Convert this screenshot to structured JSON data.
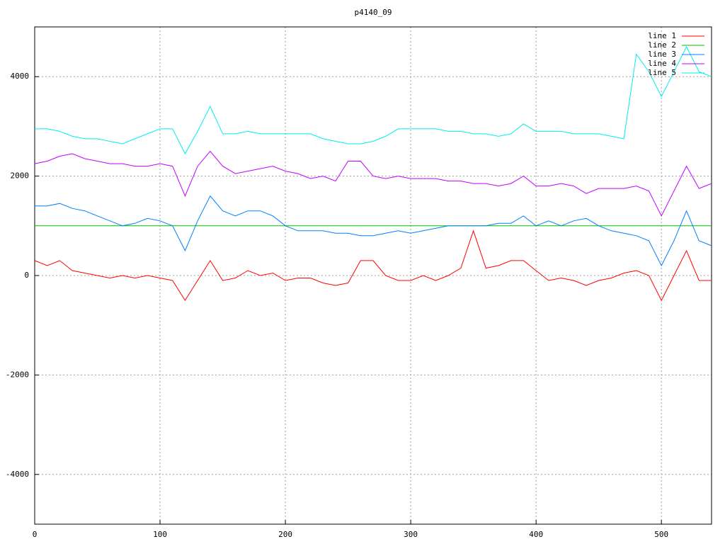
{
  "chart_data": {
    "type": "line",
    "title": "p4140_09",
    "x": [
      0,
      10,
      20,
      30,
      40,
      50,
      60,
      70,
      80,
      90,
      100,
      110,
      120,
      130,
      140,
      150,
      160,
      170,
      180,
      190,
      200,
      210,
      220,
      230,
      240,
      250,
      260,
      270,
      280,
      290,
      300,
      310,
      320,
      330,
      340,
      350,
      360,
      370,
      380,
      390,
      400,
      410,
      420,
      430,
      440,
      450,
      460,
      470,
      480,
      490,
      500,
      510,
      520,
      530,
      540
    ],
    "series": [
      {
        "name": "line 1",
        "color": "#ff0000",
        "values": [
          300,
          200,
          300,
          100,
          50,
          0,
          -50,
          0,
          -50,
          0,
          -50,
          -100,
          -500,
          -100,
          300,
          -100,
          -50,
          100,
          0,
          50,
          -100,
          -50,
          -50,
          -150,
          -200,
          -150,
          300,
          300,
          0,
          -100,
          -100,
          0,
          -100,
          0,
          150,
          900,
          150,
          200,
          300,
          300,
          100,
          -100,
          -50,
          -100,
          -200,
          -100,
          -50,
          50,
          100,
          0,
          -500,
          0,
          500,
          -100,
          -100
        ]
      },
      {
        "name": "line 2",
        "color": "#00c000",
        "values": [
          1000,
          1000,
          1000,
          1000,
          1000,
          1000,
          1000,
          1000,
          1000,
          1000,
          1000,
          1000,
          1000,
          1000,
          1000,
          1000,
          1000,
          1000,
          1000,
          1000,
          1000,
          1000,
          1000,
          1000,
          1000,
          1000,
          1000,
          1000,
          1000,
          1000,
          1000,
          1000,
          1000,
          1000,
          1000,
          1000,
          1000,
          1000,
          1000,
          1000,
          1000,
          1000,
          1000,
          1000,
          1000,
          1000,
          1000,
          1000,
          1000,
          1000,
          1000,
          1000,
          1000,
          1000,
          1000
        ]
      },
      {
        "name": "line 3",
        "color": "#0080ff",
        "values": [
          1400,
          1400,
          1450,
          1350,
          1300,
          1200,
          1100,
          1000,
          1050,
          1150,
          1100,
          1000,
          500,
          1100,
          1600,
          1300,
          1200,
          1300,
          1300,
          1200,
          1000,
          900,
          900,
          900,
          850,
          850,
          800,
          800,
          850,
          900,
          850,
          900,
          950,
          1000,
          1000,
          1000,
          1000,
          1050,
          1050,
          1200,
          1000,
          1100,
          1000,
          1100,
          1150,
          1000,
          900,
          850,
          800,
          700,
          200,
          700,
          1300,
          700,
          600
        ]
      },
      {
        "name": "line 4",
        "color": "#c000ff",
        "values": [
          2250,
          2300,
          2400,
          2450,
          2350,
          2300,
          2250,
          2250,
          2200,
          2200,
          2250,
          2200,
          1600,
          2200,
          2500,
          2200,
          2050,
          2100,
          2150,
          2200,
          2100,
          2050,
          1950,
          2000,
          1900,
          2300,
          2300,
          2000,
          1950,
          2000,
          1950,
          1950,
          1950,
          1900,
          1900,
          1850,
          1850,
          1800,
          1850,
          2000,
          1800,
          1800,
          1850,
          1800,
          1650,
          1750,
          1750,
          1750,
          1800,
          1700,
          1200,
          1700,
          2200,
          1750,
          1850
        ]
      },
      {
        "name": "line 5",
        "color": "#00eeee",
        "values": [
          2950,
          2950,
          2900,
          2800,
          2750,
          2750,
          2700,
          2650,
          2750,
          2850,
          2950,
          2950,
          2450,
          2900,
          3400,
          2850,
          2850,
          2900,
          2850,
          2850,
          2850,
          2850,
          2850,
          2750,
          2700,
          2650,
          2650,
          2700,
          2800,
          2950,
          2950,
          2950,
          2950,
          2900,
          2900,
          2850,
          2850,
          2800,
          2850,
          3050,
          2900,
          2900,
          2900,
          2850,
          2850,
          2850,
          2800,
          2750,
          4450,
          4100,
          3600,
          4100,
          4600,
          4100,
          4000
        ]
      }
    ],
    "xlim": [
      0,
      540
    ],
    "xticks": [
      0,
      100,
      200,
      300,
      400,
      500
    ],
    "ylim": [
      -5000,
      5000
    ],
    "yticks": [
      -4000,
      -2000,
      0,
      2000,
      4000
    ],
    "grid": true,
    "legend": "top-right"
  }
}
